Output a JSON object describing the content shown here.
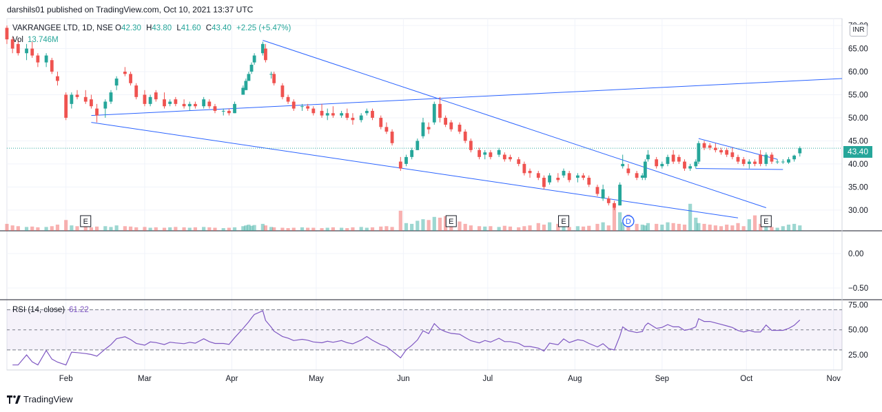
{
  "header": {
    "publish_line": "darshils01 published on TradingView.com, Oct 10, 2021 13:37 UTC"
  },
  "legend": {
    "symbol": "VAKRANGEE LTD, 1D, NSE",
    "o_label": "O",
    "o_value": "42.30",
    "h_label": "H",
    "h_value": "43.80",
    "l_label": "L",
    "l_value": "41.60",
    "c_label": "C",
    "c_value": "43.40",
    "change": "+2.25 (+5.47%)",
    "vol_label": "Vol",
    "vol_value": "13.746M",
    "rsi_label": "RSI (14, close)",
    "rsi_value": "61.22"
  },
  "currency": "INR",
  "last_price": "43.40",
  "brand": "TradingView",
  "colors": {
    "up": "#26a69a",
    "down": "#ef5350",
    "trendline": "#2962ff",
    "rsi": "#7e57c2",
    "rsi_band": "#7e57c2"
  },
  "chart_data": {
    "type": "candlestick",
    "x_range": [
      "2021-01-11",
      "2021-11-04"
    ],
    "y_range": [
      25.5,
      71.5
    ],
    "price_ticks": [
      "70.00",
      "65.00",
      "60.00",
      "55.00",
      "50.00",
      "45.00",
      "40.00",
      "35.00",
      "30.00"
    ],
    "middle_pane_ticks": [
      "0.00",
      "−0.50"
    ],
    "rsi_ticks": [
      "75.00",
      "50.00",
      "25.00"
    ],
    "rsi_levels": {
      "upper": 70,
      "middle": 50,
      "lower": 30
    },
    "x_tick_labels": [
      {
        "date": "2021-02-01",
        "label": "Feb"
      },
      {
        "date": "2021-03-01",
        "label": "Mar"
      },
      {
        "date": "2021-04-01",
        "label": "Apr"
      },
      {
        "date": "2021-05-01",
        "label": "May"
      },
      {
        "date": "2021-06-01",
        "label": "Jun"
      },
      {
        "date": "2021-07-01",
        "label": "Jul"
      },
      {
        "date": "2021-08-01",
        "label": "Aug"
      },
      {
        "date": "2021-09-01",
        "label": "Sep"
      },
      {
        "date": "2021-10-01",
        "label": "Oct"
      },
      {
        "date": "2021-11-01",
        "label": "Nov"
      }
    ],
    "events": [
      {
        "date": "2021-02-08",
        "label": "E"
      },
      {
        "date": "2021-06-18",
        "label": "E"
      },
      {
        "date": "2021-07-28",
        "label": "E"
      },
      {
        "date": "2021-08-20",
        "label": "D"
      },
      {
        "date": "2021-10-08",
        "label": "E"
      }
    ],
    "candles": [
      {
        "d": "2021-01-11",
        "o": 69.5,
        "h": 70,
        "l": 66,
        "c": 67
      },
      {
        "d": "2021-01-13",
        "o": 67,
        "h": 67.5,
        "l": 64,
        "c": 65
      },
      {
        "d": "2021-01-15",
        "o": 66,
        "h": 67,
        "l": 63.5,
        "c": 64
      },
      {
        "d": "2021-01-18",
        "o": 64,
        "h": 66,
        "l": 62.5,
        "c": 65
      },
      {
        "d": "2021-01-20",
        "o": 65,
        "h": 66.5,
        "l": 63,
        "c": 63.5
      },
      {
        "d": "2021-01-22",
        "o": 63.5,
        "h": 64,
        "l": 61,
        "c": 62
      },
      {
        "d": "2021-01-25",
        "o": 62,
        "h": 64,
        "l": 61,
        "c": 63.5
      },
      {
        "d": "2021-01-27",
        "o": 62.5,
        "h": 63,
        "l": 59.5,
        "c": 60
      },
      {
        "d": "2021-01-29",
        "o": 59,
        "h": 60,
        "l": 57,
        "c": 58
      },
      {
        "d": "2021-02-01",
        "o": 55,
        "h": 55.5,
        "l": 49.5,
        "c": 50
      },
      {
        "d": "2021-02-03",
        "o": 53,
        "h": 55.5,
        "l": 52,
        "c": 55
      },
      {
        "d": "2021-02-05",
        "o": 55,
        "h": 56,
        "l": 54,
        "c": 54.5
      },
      {
        "d": "2021-02-08",
        "o": 54.5,
        "h": 56,
        "l": 53,
        "c": 53.5
      },
      {
        "d": "2021-02-10",
        "o": 54,
        "h": 55,
        "l": 52,
        "c": 52.5
      },
      {
        "d": "2021-02-12",
        "o": 52,
        "h": 53,
        "l": 49,
        "c": 50.5
      },
      {
        "d": "2021-02-15",
        "o": 52,
        "h": 54,
        "l": 50,
        "c": 53.5
      },
      {
        "d": "2021-02-17",
        "o": 53.5,
        "h": 56,
        "l": 53,
        "c": 55.5
      },
      {
        "d": "2021-02-19",
        "o": 57,
        "h": 59,
        "l": 56,
        "c": 58.5
      },
      {
        "d": "2021-02-22",
        "o": 60,
        "h": 61,
        "l": 59,
        "c": 59.5
      },
      {
        "d": "2021-02-24",
        "o": 59.5,
        "h": 60,
        "l": 57,
        "c": 57.5
      },
      {
        "d": "2021-02-26",
        "o": 57,
        "h": 57.5,
        "l": 54,
        "c": 54.5
      },
      {
        "d": "2021-03-01",
        "o": 55,
        "h": 56,
        "l": 52.5,
        "c": 53
      },
      {
        "d": "2021-03-03",
        "o": 53,
        "h": 55,
        "l": 52.5,
        "c": 54.5
      },
      {
        "d": "2021-03-05",
        "o": 55.5,
        "h": 56,
        "l": 53.5,
        "c": 54
      },
      {
        "d": "2021-03-08",
        "o": 54,
        "h": 55.5,
        "l": 52,
        "c": 52.5
      },
      {
        "d": "2021-03-10",
        "o": 53,
        "h": 54,
        "l": 52.5,
        "c": 53.5
      },
      {
        "d": "2021-03-12",
        "o": 54,
        "h": 54.5,
        "l": 52.5,
        "c": 53
      },
      {
        "d": "2021-03-15",
        "o": 53,
        "h": 54,
        "l": 52,
        "c": 52.5
      },
      {
        "d": "2021-03-17",
        "o": 52.5,
        "h": 53.5,
        "l": 51.5,
        "c": 53
      },
      {
        "d": "2021-03-19",
        "o": 53,
        "h": 53.5,
        "l": 52,
        "c": 52.5
      },
      {
        "d": "2021-03-22",
        "o": 52.5,
        "h": 54.5,
        "l": 52,
        "c": 54
      },
      {
        "d": "2021-03-24",
        "o": 53.5,
        "h": 54,
        "l": 52,
        "c": 52.5
      },
      {
        "d": "2021-03-26",
        "o": 52.5,
        "h": 53,
        "l": 51,
        "c": 51.5
      },
      {
        "d": "2021-03-29",
        "o": 51.5,
        "h": 52,
        "l": 50.5,
        "c": 51.5
      },
      {
        "d": "2021-03-31",
        "o": 51.5,
        "h": 52,
        "l": 50.5,
        "c": 51
      },
      {
        "d": "2021-04-02",
        "o": 51,
        "h": 53.5,
        "l": 51,
        "c": 53
      },
      {
        "d": "2021-04-05",
        "o": 55,
        "h": 57,
        "l": 55,
        "c": 56.5
      },
      {
        "d": "2021-04-06",
        "o": 56,
        "h": 58.5,
        "l": 56,
        "c": 58
      },
      {
        "d": "2021-04-07",
        "o": 58,
        "h": 60,
        "l": 58,
        "c": 59.5
      },
      {
        "d": "2021-04-08",
        "o": 60,
        "h": 62,
        "l": 59.5,
        "c": 61.5
      },
      {
        "d": "2021-04-09",
        "o": 62,
        "h": 64,
        "l": 61.5,
        "c": 63.5
      },
      {
        "d": "2021-04-12",
        "o": 64,
        "h": 66.5,
        "l": 63.5,
        "c": 66
      },
      {
        "d": "2021-04-13",
        "o": 65,
        "h": 66,
        "l": 62,
        "c": 62.5
      },
      {
        "d": "2021-04-15",
        "o": 59.5,
        "h": 60,
        "l": 58.5,
        "c": 59.5
      },
      {
        "d": "2021-04-16",
        "o": 59.5,
        "h": 60,
        "l": 57,
        "c": 57.5
      },
      {
        "d": "2021-04-19",
        "o": 57,
        "h": 57.5,
        "l": 54,
        "c": 54.5
      },
      {
        "d": "2021-04-21",
        "o": 54.5,
        "h": 55,
        "l": 53,
        "c": 53.5
      },
      {
        "d": "2021-04-23",
        "o": 53.5,
        "h": 54,
        "l": 51.5,
        "c": 52
      },
      {
        "d": "2021-04-26",
        "o": 52.5,
        "h": 53,
        "l": 51.5,
        "c": 52.5
      },
      {
        "d": "2021-04-28",
        "o": 52.5,
        "h": 53,
        "l": 51.5,
        "c": 52
      },
      {
        "d": "2021-04-30",
        "o": 52,
        "h": 52.5,
        "l": 50.5,
        "c": 51
      },
      {
        "d": "2021-05-03",
        "o": 51.5,
        "h": 53,
        "l": 50,
        "c": 50.5
      },
      {
        "d": "2021-05-05",
        "o": 50.5,
        "h": 52,
        "l": 49.5,
        "c": 51
      },
      {
        "d": "2021-05-07",
        "o": 51,
        "h": 52.5,
        "l": 50,
        "c": 50.5
      },
      {
        "d": "2021-05-10",
        "o": 50.5,
        "h": 51.5,
        "l": 50,
        "c": 51
      },
      {
        "d": "2021-05-12",
        "o": 51,
        "h": 52,
        "l": 49.5,
        "c": 50
      },
      {
        "d": "2021-05-14",
        "o": 50,
        "h": 51,
        "l": 48.5,
        "c": 49.5
      },
      {
        "d": "2021-05-17",
        "o": 49.5,
        "h": 51,
        "l": 49,
        "c": 50.5
      },
      {
        "d": "2021-05-19",
        "o": 51,
        "h": 52,
        "l": 50.5,
        "c": 51.5
      },
      {
        "d": "2021-05-21",
        "o": 51.5,
        "h": 52,
        "l": 49.5,
        "c": 50
      },
      {
        "d": "2021-05-24",
        "o": 50,
        "h": 50.5,
        "l": 47.5,
        "c": 48
      },
      {
        "d": "2021-05-26",
        "o": 48,
        "h": 49,
        "l": 46.5,
        "c": 47
      },
      {
        "d": "2021-05-28",
        "o": 47,
        "h": 47.5,
        "l": 44,
        "c": 44.5
      },
      {
        "d": "2021-05-31",
        "o": 40.5,
        "h": 41.5,
        "l": 38.5,
        "c": 39
      },
      {
        "d": "2021-06-02",
        "o": 40,
        "h": 42,
        "l": 39.5,
        "c": 41.5
      },
      {
        "d": "2021-06-04",
        "o": 41.5,
        "h": 43.5,
        "l": 41,
        "c": 43
      },
      {
        "d": "2021-06-06",
        "o": 43,
        "h": 45.5,
        "l": 43,
        "c": 45
      },
      {
        "d": "2021-06-08",
        "o": 46,
        "h": 50,
        "l": 45.5,
        "c": 49
      },
      {
        "d": "2021-06-10",
        "o": 48,
        "h": 49,
        "l": 46.5,
        "c": 47.5
      },
      {
        "d": "2021-06-12",
        "o": 49,
        "h": 53.5,
        "l": 48.5,
        "c": 53
      },
      {
        "d": "2021-06-14",
        "o": 53,
        "h": 54.5,
        "l": 49,
        "c": 50
      },
      {
        "d": "2021-06-16",
        "o": 50,
        "h": 50.5,
        "l": 48,
        "c": 48.5
      },
      {
        "d": "2021-06-18",
        "o": 49,
        "h": 49.5,
        "l": 47,
        "c": 47.5
      },
      {
        "d": "2021-06-21",
        "o": 48.5,
        "h": 49,
        "l": 46.5,
        "c": 47
      },
      {
        "d": "2021-06-23",
        "o": 47,
        "h": 47.5,
        "l": 44.5,
        "c": 45
      },
      {
        "d": "2021-06-25",
        "o": 45,
        "h": 45.5,
        "l": 42.5,
        "c": 43
      },
      {
        "d": "2021-06-28",
        "o": 43,
        "h": 43.5,
        "l": 41,
        "c": 41.5
      },
      {
        "d": "2021-06-30",
        "o": 42,
        "h": 43,
        "l": 41,
        "c": 42.5
      },
      {
        "d": "2021-07-02",
        "o": 42.5,
        "h": 43,
        "l": 41,
        "c": 41.5
      },
      {
        "d": "2021-07-05",
        "o": 42,
        "h": 43.5,
        "l": 41.5,
        "c": 43
      },
      {
        "d": "2021-07-07",
        "o": 42,
        "h": 42.5,
        "l": 40.5,
        "c": 41
      },
      {
        "d": "2021-07-09",
        "o": 41.5,
        "h": 42,
        "l": 40.5,
        "c": 41
      },
      {
        "d": "2021-07-12",
        "o": 41,
        "h": 41.5,
        "l": 39.5,
        "c": 40
      },
      {
        "d": "2021-07-14",
        "o": 40,
        "h": 40.5,
        "l": 37.5,
        "c": 38
      },
      {
        "d": "2021-07-16",
        "o": 38.5,
        "h": 39,
        "l": 37,
        "c": 38
      },
      {
        "d": "2021-07-19",
        "o": 38,
        "h": 38.5,
        "l": 36.5,
        "c": 37
      },
      {
        "d": "2021-07-21",
        "o": 37,
        "h": 37.5,
        "l": 34.5,
        "c": 35
      },
      {
        "d": "2021-07-23",
        "o": 36,
        "h": 38,
        "l": 35.5,
        "c": 37.5
      },
      {
        "d": "2021-07-26",
        "o": 37,
        "h": 38,
        "l": 36,
        "c": 36.5
      },
      {
        "d": "2021-07-28",
        "o": 37.5,
        "h": 39,
        "l": 37,
        "c": 38.5
      },
      {
        "d": "2021-07-30",
        "o": 38,
        "h": 38.5,
        "l": 36,
        "c": 36.5
      },
      {
        "d": "2021-08-02",
        "o": 37,
        "h": 38,
        "l": 36,
        "c": 37.5
      },
      {
        "d": "2021-08-04",
        "o": 37.5,
        "h": 38,
        "l": 36.5,
        "c": 37
      },
      {
        "d": "2021-08-06",
        "o": 37,
        "h": 37.5,
        "l": 35,
        "c": 35.5
      },
      {
        "d": "2021-08-09",
        "o": 35,
        "h": 35.5,
        "l": 33,
        "c": 33.5
      },
      {
        "d": "2021-08-11",
        "o": 32.5,
        "h": 35.5,
        "l": 32,
        "c": 34.5
      },
      {
        "d": "2021-08-13",
        "o": 32.5,
        "h": 33,
        "l": 31,
        "c": 31.5
      },
      {
        "d": "2021-08-15",
        "o": 31.5,
        "h": 32,
        "l": 30,
        "c": 30.5
      },
      {
        "d": "2021-08-17",
        "o": 31,
        "h": 36,
        "l": 31,
        "c": 35.5
      },
      {
        "d": "2021-08-18",
        "o": 39.5,
        "h": 42,
        "l": 39,
        "c": 40
      },
      {
        "d": "2021-08-20",
        "o": 39,
        "h": 40,
        "l": 37.5,
        "c": 38
      },
      {
        "d": "2021-08-23",
        "o": 38,
        "h": 38.5,
        "l": 36.5,
        "c": 37
      },
      {
        "d": "2021-08-25",
        "o": 37,
        "h": 38,
        "l": 36.5,
        "c": 37.5
      },
      {
        "d": "2021-08-26",
        "o": 37,
        "h": 41,
        "l": 36.5,
        "c": 40.5
      },
      {
        "d": "2021-08-27",
        "o": 41,
        "h": 43,
        "l": 40.5,
        "c": 42
      },
      {
        "d": "2021-08-30",
        "o": 41,
        "h": 41.5,
        "l": 39,
        "c": 39.5
      },
      {
        "d": "2021-09-01",
        "o": 39.5,
        "h": 40.5,
        "l": 39,
        "c": 40
      },
      {
        "d": "2021-09-03",
        "o": 40,
        "h": 42,
        "l": 39.5,
        "c": 41.5
      },
      {
        "d": "2021-09-05",
        "o": 42,
        "h": 43,
        "l": 40,
        "c": 40.5
      },
      {
        "d": "2021-09-07",
        "o": 41.5,
        "h": 42,
        "l": 40,
        "c": 40.5
      },
      {
        "d": "2021-09-09",
        "o": 40.5,
        "h": 41,
        "l": 38.5,
        "c": 39
      },
      {
        "d": "2021-09-11",
        "o": 39,
        "h": 40,
        "l": 38.5,
        "c": 39.5
      },
      {
        "d": "2021-09-13",
        "o": 39.5,
        "h": 41,
        "l": 39,
        "c": 40.5
      },
      {
        "d": "2021-09-14",
        "o": 40.5,
        "h": 45,
        "l": 40,
        "c": 44.5
      },
      {
        "d": "2021-09-16",
        "o": 44.5,
        "h": 45,
        "l": 43,
        "c": 43.5
      },
      {
        "d": "2021-09-18",
        "o": 44,
        "h": 44.5,
        "l": 43,
        "c": 43.5
      },
      {
        "d": "2021-09-20",
        "o": 43.5,
        "h": 44.5,
        "l": 42.5,
        "c": 43
      },
      {
        "d": "2021-09-22",
        "o": 43,
        "h": 43.5,
        "l": 42,
        "c": 42.5
      },
      {
        "d": "2021-09-24",
        "o": 43,
        "h": 43.5,
        "l": 41.5,
        "c": 42
      },
      {
        "d": "2021-09-26",
        "o": 42.5,
        "h": 43.5,
        "l": 41,
        "c": 41.5
      },
      {
        "d": "2021-09-28",
        "o": 41.5,
        "h": 42,
        "l": 40,
        "c": 40.5
      },
      {
        "d": "2021-09-30",
        "o": 41,
        "h": 41.5,
        "l": 39.5,
        "c": 40
      },
      {
        "d": "2021-10-02",
        "o": 40,
        "h": 41,
        "l": 39,
        "c": 40.5
      },
      {
        "d": "2021-10-04",
        "o": 40.5,
        "h": 41,
        "l": 39.5,
        "c": 40
      },
      {
        "d": "2021-10-06",
        "o": 42,
        "h": 43,
        "l": 39.5,
        "c": 40
      },
      {
        "d": "2021-10-08",
        "o": 40,
        "h": 42.5,
        "l": 39.5,
        "c": 42
      },
      {
        "d": "2021-10-10",
        "o": 42,
        "h": 42.5,
        "l": 40,
        "c": 40.5
      },
      {
        "d": "2021-10-12",
        "o": 40.5,
        "h": 41,
        "l": 40,
        "c": 40.5
      },
      {
        "d": "2021-10-14",
        "o": 40.5,
        "h": 41,
        "l": 40,
        "c": 40.5
      },
      {
        "d": "2021-10-16",
        "o": 40.3,
        "h": 41.5,
        "l": 40,
        "c": 41
      },
      {
        "d": "2021-10-18",
        "o": 41,
        "h": 42,
        "l": 40.5,
        "c": 41.8
      },
      {
        "d": "2021-10-20",
        "o": 42.3,
        "h": 43.8,
        "l": 41.6,
        "c": 43.4
      }
    ],
    "volume_scale_max": 100,
    "trendlines": [
      {
        "from": {
          "d": "2021-02-10",
          "p": 50.5
        },
        "to": {
          "d": "2021-11-04",
          "p": 58.5
        }
      },
      {
        "from": {
          "d": "2021-02-10",
          "p": 49
        },
        "to": {
          "d": "2021-09-28",
          "p": 28.3
        }
      },
      {
        "from": {
          "d": "2021-04-12",
          "p": 66.8
        },
        "to": {
          "d": "2021-10-08",
          "p": 30.5
        }
      },
      {
        "from": {
          "d": "2021-09-14",
          "p": 45.5
        },
        "to": {
          "d": "2021-10-12",
          "p": 41
        }
      },
      {
        "from": {
          "d": "2021-09-13",
          "p": 39
        },
        "to": {
          "d": "2021-10-14",
          "p": 38.8
        }
      }
    ]
  }
}
